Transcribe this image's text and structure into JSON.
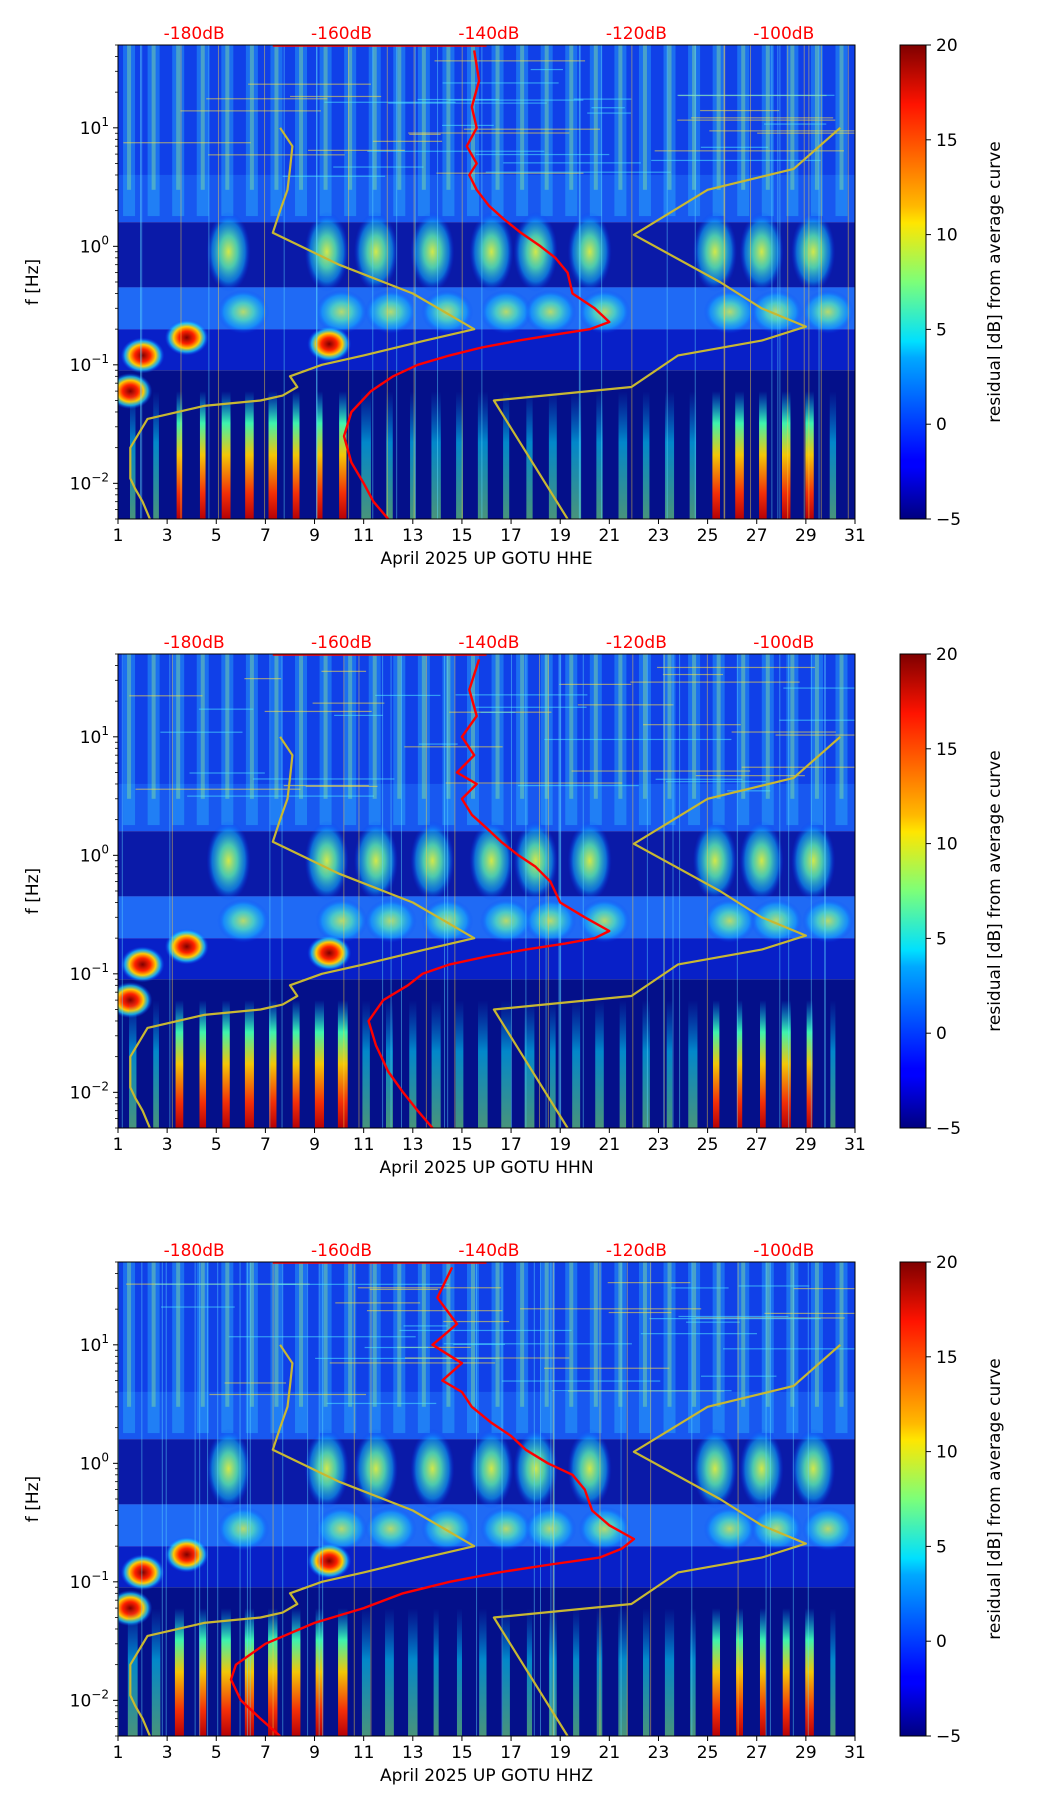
{
  "chart_data": [
    {
      "type": "heatmap",
      "xlabel": "April 2025 UP GOTU  HHE",
      "ylabel": "f [Hz]",
      "xlim": [
        1,
        31
      ],
      "ylim": [
        0.005,
        50
      ],
      "yscale": "log",
      "x_ticks": [
        "1",
        "3",
        "5",
        "7",
        "9",
        "11",
        "13",
        "15",
        "17",
        "19",
        "21",
        "23",
        "25",
        "27",
        "29",
        "31"
      ],
      "y_ticks": [
        {
          "value": 0.01,
          "base": "10",
          "exp": "−2"
        },
        {
          "value": 0.1,
          "base": "10",
          "exp": "−1"
        },
        {
          "value": 1,
          "base": "10",
          "exp": "0"
        },
        {
          "value": 10,
          "base": "10",
          "exp": "1"
        }
      ],
      "top_labels": [
        {
          "x": 4.1,
          "text": "-180dB"
        },
        {
          "x": 10.1,
          "text": "-160dB"
        },
        {
          "x": 16.1,
          "text": "-140dB"
        },
        {
          "x": 22.1,
          "text": "-120dB"
        },
        {
          "x": 28.1,
          "text": "-100dB"
        }
      ],
      "colorbar": {
        "label": "residual [dB] from average curve",
        "min": -5,
        "max": 20,
        "ticks": [
          "−5",
          "0",
          "5",
          "10",
          "15",
          "20"
        ],
        "tick_values": [
          -5,
          0,
          5,
          10,
          15,
          20
        ]
      },
      "colors": {
        "curve_red": "#ff0000",
        "curve_yellow": "#c8b832",
        "label_red": "#ff0000"
      },
      "series": [
        {
          "name": "red curve (spectral level, dB scale on top axis)",
          "x": [
            12.0,
            11.4,
            11.0,
            10.5,
            10.2,
            10.5,
            11.3,
            12.2,
            13.2,
            14.5,
            15.8,
            17.3,
            18.8,
            20.2,
            21.0,
            20.4,
            19.5,
            19.3,
            18.8,
            18.2,
            17.4,
            16.7,
            16.1,
            15.6,
            15.3,
            15.6,
            15.2,
            15.6,
            15.4,
            15.7,
            15.5
          ],
          "y": [
            0.005,
            0.007,
            0.01,
            0.015,
            0.025,
            0.04,
            0.06,
            0.08,
            0.1,
            0.12,
            0.14,
            0.16,
            0.18,
            0.2,
            0.23,
            0.3,
            0.4,
            0.6,
            0.8,
            1.0,
            1.3,
            1.7,
            2.2,
            3,
            4,
            5,
            7,
            10,
            15,
            25,
            45
          ]
        },
        {
          "name": "yellow curve A",
          "x": [
            2.3,
            2.0,
            1.7,
            1.5,
            1.5,
            2.2,
            4.5,
            6.8,
            7.7,
            8.3,
            8.0,
            9.3,
            11.0,
            13.5,
            15.5,
            13.0,
            10.0,
            7.3,
            7.6,
            7.9,
            8.0,
            8.1,
            7.6
          ],
          "y": [
            0.005,
            0.007,
            0.009,
            0.011,
            0.02,
            0.035,
            0.045,
            0.05,
            0.055,
            0.065,
            0.08,
            0.1,
            0.12,
            0.16,
            0.2,
            0.4,
            0.7,
            1.3,
            2.0,
            3.0,
            4.5,
            7,
            10
          ]
        },
        {
          "name": "yellow curve B",
          "x": [
            19.3,
            16.3,
            21.9,
            23.8,
            27.2,
            29.0,
            27.2,
            25.5,
            22.0,
            25.0,
            28.5,
            30.4
          ],
          "y": [
            0.005,
            0.05,
            0.065,
            0.12,
            0.16,
            0.21,
            0.3,
            0.5,
            1.25,
            3.0,
            4.5,
            10
          ]
        }
      ]
    },
    {
      "type": "heatmap",
      "xlabel": "April 2025 UP GOTU  HHN",
      "ylabel": "f [Hz]",
      "xlim": [
        1,
        31
      ],
      "ylim": [
        0.005,
        50
      ],
      "yscale": "log",
      "x_ticks": [
        "1",
        "3",
        "5",
        "7",
        "9",
        "11",
        "13",
        "15",
        "17",
        "19",
        "21",
        "23",
        "25",
        "27",
        "29",
        "31"
      ],
      "y_ticks": [
        {
          "value": 0.01,
          "base": "10",
          "exp": "−2"
        },
        {
          "value": 0.1,
          "base": "10",
          "exp": "−1"
        },
        {
          "value": 1,
          "base": "10",
          "exp": "0"
        },
        {
          "value": 10,
          "base": "10",
          "exp": "1"
        }
      ],
      "top_labels": [
        {
          "x": 4.1,
          "text": "-180dB"
        },
        {
          "x": 10.1,
          "text": "-160dB"
        },
        {
          "x": 16.1,
          "text": "-140dB"
        },
        {
          "x": 22.1,
          "text": "-120dB"
        },
        {
          "x": 28.1,
          "text": "-100dB"
        }
      ],
      "colorbar": {
        "label": "residual [dB] from average curve",
        "min": -5,
        "max": 20,
        "ticks": [
          "−5",
          "0",
          "5",
          "10",
          "15",
          "20"
        ],
        "tick_values": [
          -5,
          0,
          5,
          10,
          15,
          20
        ]
      },
      "colors": {
        "curve_red": "#ff0000",
        "curve_yellow": "#c8b832",
        "label_red": "#ff0000"
      },
      "series": [
        {
          "name": "red curve (spectral level, dB scale on top axis)",
          "x": [
            13.8,
            13.2,
            12.6,
            12.0,
            11.5,
            11.2,
            11.8,
            12.8,
            13.4,
            14.5,
            16.0,
            17.6,
            19.2,
            20.4,
            21.0,
            20.0,
            19.0,
            18.6,
            18.0,
            17.3,
            16.6,
            16.0,
            15.4,
            15.0,
            15.6,
            14.8,
            15.5,
            15.0,
            15.6,
            15.3,
            15.7
          ],
          "y": [
            0.005,
            0.007,
            0.01,
            0.015,
            0.025,
            0.04,
            0.06,
            0.08,
            0.1,
            0.12,
            0.14,
            0.16,
            0.18,
            0.2,
            0.23,
            0.3,
            0.4,
            0.6,
            0.8,
            1.0,
            1.3,
            1.7,
            2.2,
            3,
            4,
            5,
            7,
            10,
            15,
            25,
            45
          ]
        },
        {
          "name": "yellow curve A",
          "x": [
            2.3,
            2.0,
            1.7,
            1.5,
            1.5,
            2.2,
            4.5,
            6.8,
            7.7,
            8.3,
            8.0,
            9.3,
            11.0,
            13.5,
            15.5,
            13.0,
            10.0,
            7.3,
            7.6,
            7.9,
            8.0,
            8.1,
            7.6
          ],
          "y": [
            0.005,
            0.007,
            0.009,
            0.011,
            0.02,
            0.035,
            0.045,
            0.05,
            0.055,
            0.065,
            0.08,
            0.1,
            0.12,
            0.16,
            0.2,
            0.4,
            0.7,
            1.3,
            2.0,
            3.0,
            4.5,
            7,
            10
          ]
        },
        {
          "name": "yellow curve B",
          "x": [
            19.3,
            16.3,
            21.9,
            23.8,
            27.2,
            29.0,
            27.2,
            25.5,
            22.0,
            25.0,
            28.5,
            30.4
          ],
          "y": [
            0.005,
            0.05,
            0.065,
            0.12,
            0.16,
            0.21,
            0.3,
            0.5,
            1.25,
            3.0,
            4.5,
            10
          ]
        }
      ]
    },
    {
      "type": "heatmap",
      "xlabel": "April 2025 UP GOTU  HHZ",
      "ylabel": "f [Hz]",
      "xlim": [
        1,
        31
      ],
      "ylim": [
        0.005,
        50
      ],
      "yscale": "log",
      "x_ticks": [
        "1",
        "3",
        "5",
        "7",
        "9",
        "11",
        "13",
        "15",
        "17",
        "19",
        "21",
        "23",
        "25",
        "27",
        "29",
        "31"
      ],
      "y_ticks": [
        {
          "value": 0.01,
          "base": "10",
          "exp": "−2"
        },
        {
          "value": 0.1,
          "base": "10",
          "exp": "−1"
        },
        {
          "value": 1,
          "base": "10",
          "exp": "0"
        },
        {
          "value": 10,
          "base": "10",
          "exp": "1"
        }
      ],
      "top_labels": [
        {
          "x": 4.1,
          "text": "-180dB"
        },
        {
          "x": 10.1,
          "text": "-160dB"
        },
        {
          "x": 16.1,
          "text": "-140dB"
        },
        {
          "x": 22.1,
          "text": "-120dB"
        },
        {
          "x": 28.1,
          "text": "-100dB"
        }
      ],
      "colorbar": {
        "label": "residual [dB] from average curve",
        "min": -5,
        "max": 20,
        "ticks": [
          "−5",
          "0",
          "5",
          "10",
          "15",
          "20"
        ],
        "tick_values": [
          -5,
          0,
          5,
          10,
          15,
          20
        ]
      },
      "colors": {
        "curve_red": "#ff0000",
        "curve_yellow": "#c8b832",
        "label_red": "#ff0000"
      },
      "series": [
        {
          "name": "red curve (spectral level, dB scale on top axis)",
          "x": [
            7.6,
            6.8,
            6.0,
            5.6,
            5.8,
            7.0,
            9.0,
            11.0,
            12.6,
            14.5,
            16.5,
            18.6,
            20.6,
            21.5,
            22.0,
            21.0,
            20.3,
            20.0,
            19.5,
            18.5,
            17.6,
            17.0,
            16.2,
            15.4,
            15.0,
            14.2,
            15.0,
            13.8,
            14.8,
            14.0,
            14.6
          ],
          "y": [
            0.005,
            0.007,
            0.01,
            0.015,
            0.02,
            0.03,
            0.045,
            0.06,
            0.08,
            0.1,
            0.12,
            0.14,
            0.16,
            0.19,
            0.23,
            0.3,
            0.4,
            0.6,
            0.8,
            1.0,
            1.3,
            1.7,
            2.2,
            3,
            4,
            5,
            7,
            10,
            15,
            25,
            45
          ]
        },
        {
          "name": "yellow curve A",
          "x": [
            2.3,
            2.0,
            1.7,
            1.5,
            1.5,
            2.2,
            4.5,
            6.8,
            7.7,
            8.3,
            8.0,
            9.3,
            11.0,
            13.5,
            15.5,
            13.0,
            10.0,
            7.3,
            7.6,
            7.9,
            8.0,
            8.1,
            7.6
          ],
          "y": [
            0.005,
            0.007,
            0.009,
            0.011,
            0.02,
            0.035,
            0.045,
            0.05,
            0.055,
            0.065,
            0.08,
            0.1,
            0.12,
            0.16,
            0.2,
            0.4,
            0.7,
            1.3,
            2.0,
            3.0,
            4.5,
            7,
            10
          ]
        },
        {
          "name": "yellow curve B",
          "x": [
            19.3,
            16.3,
            21.9,
            23.8,
            27.2,
            29.0,
            27.2,
            25.5,
            22.0,
            25.0,
            28.5,
            30.4
          ],
          "y": [
            0.005,
            0.05,
            0.065,
            0.12,
            0.16,
            0.21,
            0.3,
            0.5,
            1.25,
            3.0,
            4.5,
            10
          ]
        }
      ]
    }
  ]
}
